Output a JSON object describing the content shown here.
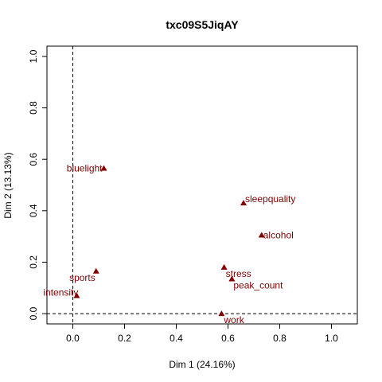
{
  "chart_data": {
    "type": "scatter",
    "title": "txc09S5JiqAY",
    "xlabel": "Dim 1 (24.16%)",
    "ylabel": "Dim 2 (13.13%)",
    "xlim": [
      -0.1,
      1.1
    ],
    "ylim": [
      -0.04,
      1.04
    ],
    "xticks": [
      "0.0",
      "0.2",
      "0.4",
      "0.6",
      "0.8",
      "1.0"
    ],
    "yticks": [
      "0.0",
      "0.2",
      "0.4",
      "0.6",
      "0.8",
      "1.0"
    ],
    "reference_lines": {
      "x": 0,
      "y": 0
    },
    "grid": false,
    "marker": "triangle",
    "point_color": "#800000",
    "points": [
      {
        "label": "bluelight",
        "x": 0.12,
        "y": 0.565
      },
      {
        "label": "sleepquality",
        "x": 0.66,
        "y": 0.43
      },
      {
        "label": "alcohol",
        "x": 0.73,
        "y": 0.305
      },
      {
        "label": "stress",
        "x": 0.585,
        "y": 0.18
      },
      {
        "label": "peak_count",
        "x": 0.615,
        "y": 0.135
      },
      {
        "label": "sports",
        "x": 0.09,
        "y": 0.165
      },
      {
        "label": "intensity",
        "x": 0.015,
        "y": 0.07
      },
      {
        "label": "work",
        "x": 0.575,
        "y": 0.0
      }
    ]
  }
}
